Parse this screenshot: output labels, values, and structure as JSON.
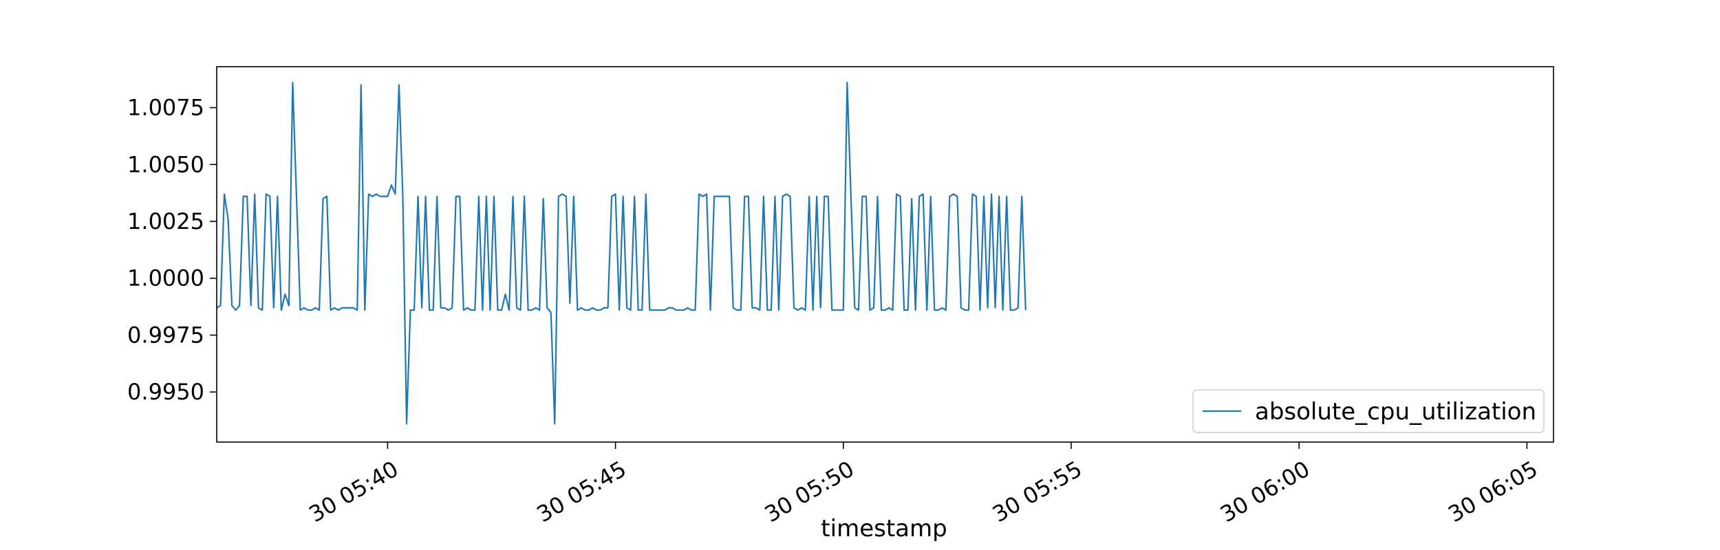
{
  "chart_data": {
    "type": "line",
    "title": "",
    "xlabel": "timestamp",
    "ylabel": "",
    "xlim": [
      "2014-05-30 05:36:15",
      "2014-05-30 06:05:35"
    ],
    "ylim": [
      0.9928,
      1.0093
    ],
    "x_ticks": [
      {
        "value": "2014-05-30 05:40",
        "label": "30 05:40"
      },
      {
        "value": "2014-05-30 05:45",
        "label": "30 05:45"
      },
      {
        "value": "2014-05-30 05:50",
        "label": "30 05:50"
      },
      {
        "value": "2014-05-30 05:55",
        "label": "30 05:55"
      },
      {
        "value": "2014-05-30 06:00",
        "label": "30 06:00"
      },
      {
        "value": "2014-05-30 06:05",
        "label": "30 06:05"
      }
    ],
    "y_ticks": [
      {
        "value": 0.995,
        "label": "0.9950"
      },
      {
        "value": 0.9975,
        "label": "0.9975"
      },
      {
        "value": 1.0,
        "label": "1.0000"
      },
      {
        "value": 1.0025,
        "label": "1.0025"
      },
      {
        "value": 1.005,
        "label": "1.0050"
      },
      {
        "value": 1.0075,
        "label": "1.0075"
      }
    ],
    "grid": false,
    "legend_position": "lower right",
    "series": [
      {
        "name": "absolute_cpu_utilization",
        "color": "#1f77b4",
        "x_start": "2014-05-30 05:36:15",
        "interval_seconds": 5,
        "values": [
          0.9987,
          0.9988,
          1.0037,
          1.0026,
          0.9988,
          0.9986,
          0.9988,
          1.0036,
          1.0036,
          0.9988,
          1.0037,
          0.9987,
          0.9986,
          1.0037,
          1.0036,
          0.9987,
          1.0036,
          0.9986,
          0.9993,
          0.9988,
          1.0086,
          1.0036,
          0.9986,
          0.9987,
          0.9986,
          0.9986,
          0.9987,
          0.9986,
          1.0035,
          1.0036,
          0.9986,
          0.9987,
          0.9986,
          0.9987,
          0.9987,
          0.9987,
          0.9987,
          0.9986,
          1.0085,
          0.9986,
          1.0037,
          1.0036,
          1.0037,
          1.0036,
          1.0036,
          1.0036,
          1.0041,
          1.0037,
          1.0085,
          1.0036,
          0.9936,
          0.9986,
          0.9986,
          1.0036,
          0.9987,
          1.0036,
          0.9986,
          0.9986,
          1.0036,
          0.9987,
          0.9987,
          0.9986,
          0.9987,
          1.0036,
          1.0036,
          0.9986,
          0.9987,
          0.9986,
          0.9986,
          1.0036,
          0.9986,
          1.0036,
          0.9986,
          1.0036,
          0.9986,
          0.9986,
          0.9993,
          0.9986,
          1.0036,
          0.9987,
          0.9986,
          1.0036,
          0.9986,
          0.9986,
          0.9987,
          0.9986,
          1.0035,
          0.9987,
          0.9985,
          0.9936,
          1.0036,
          1.0037,
          1.0036,
          0.9989,
          1.0036,
          0.9986,
          0.9987,
          0.9986,
          0.9986,
          0.9987,
          0.9986,
          0.9986,
          0.9987,
          0.9987,
          1.0036,
          1.0037,
          0.9986,
          1.0036,
          0.9987,
          0.9986,
          1.0036,
          0.9986,
          0.9986,
          1.0037,
          0.9986,
          0.9986,
          0.9986,
          0.9986,
          0.9986,
          0.9987,
          0.9987,
          0.9986,
          0.9986,
          0.9986,
          0.9987,
          0.9986,
          0.9986,
          1.0037,
          1.0036,
          1.0037,
          0.9986,
          1.0036,
          1.0036,
          1.0036,
          1.0036,
          1.0036,
          0.9987,
          0.9986,
          0.9986,
          1.0036,
          1.0036,
          0.9987,
          0.9987,
          0.9986,
          1.0036,
          0.9986,
          0.9986,
          1.0036,
          0.9986,
          1.0036,
          1.0037,
          1.0036,
          0.9987,
          0.9986,
          0.9987,
          0.9986,
          1.0036,
          0.9986,
          1.0036,
          0.9987,
          1.0036,
          1.0036,
          0.9986,
          0.9986,
          0.9986,
          0.9986,
          1.0086,
          1.0036,
          0.9987,
          0.9986,
          1.0036,
          1.0036,
          0.9986,
          0.9987,
          1.0036,
          0.9986,
          0.9986,
          0.9987,
          0.9986,
          1.0037,
          1.0036,
          0.9986,
          0.9986,
          1.0035,
          0.9986,
          1.0036,
          1.0037,
          0.9986,
          1.0036,
          0.9986,
          0.9986,
          0.9987,
          0.9986,
          1.0036,
          1.0037,
          1.0036,
          0.9987,
          0.9986,
          0.9986,
          1.0037,
          1.0036,
          0.9986,
          1.0036,
          0.9987,
          1.0037,
          0.9987,
          1.0036,
          0.9986,
          1.0036,
          0.9986,
          0.9986,
          0.9987,
          1.0036,
          0.9986
        ]
      }
    ]
  }
}
